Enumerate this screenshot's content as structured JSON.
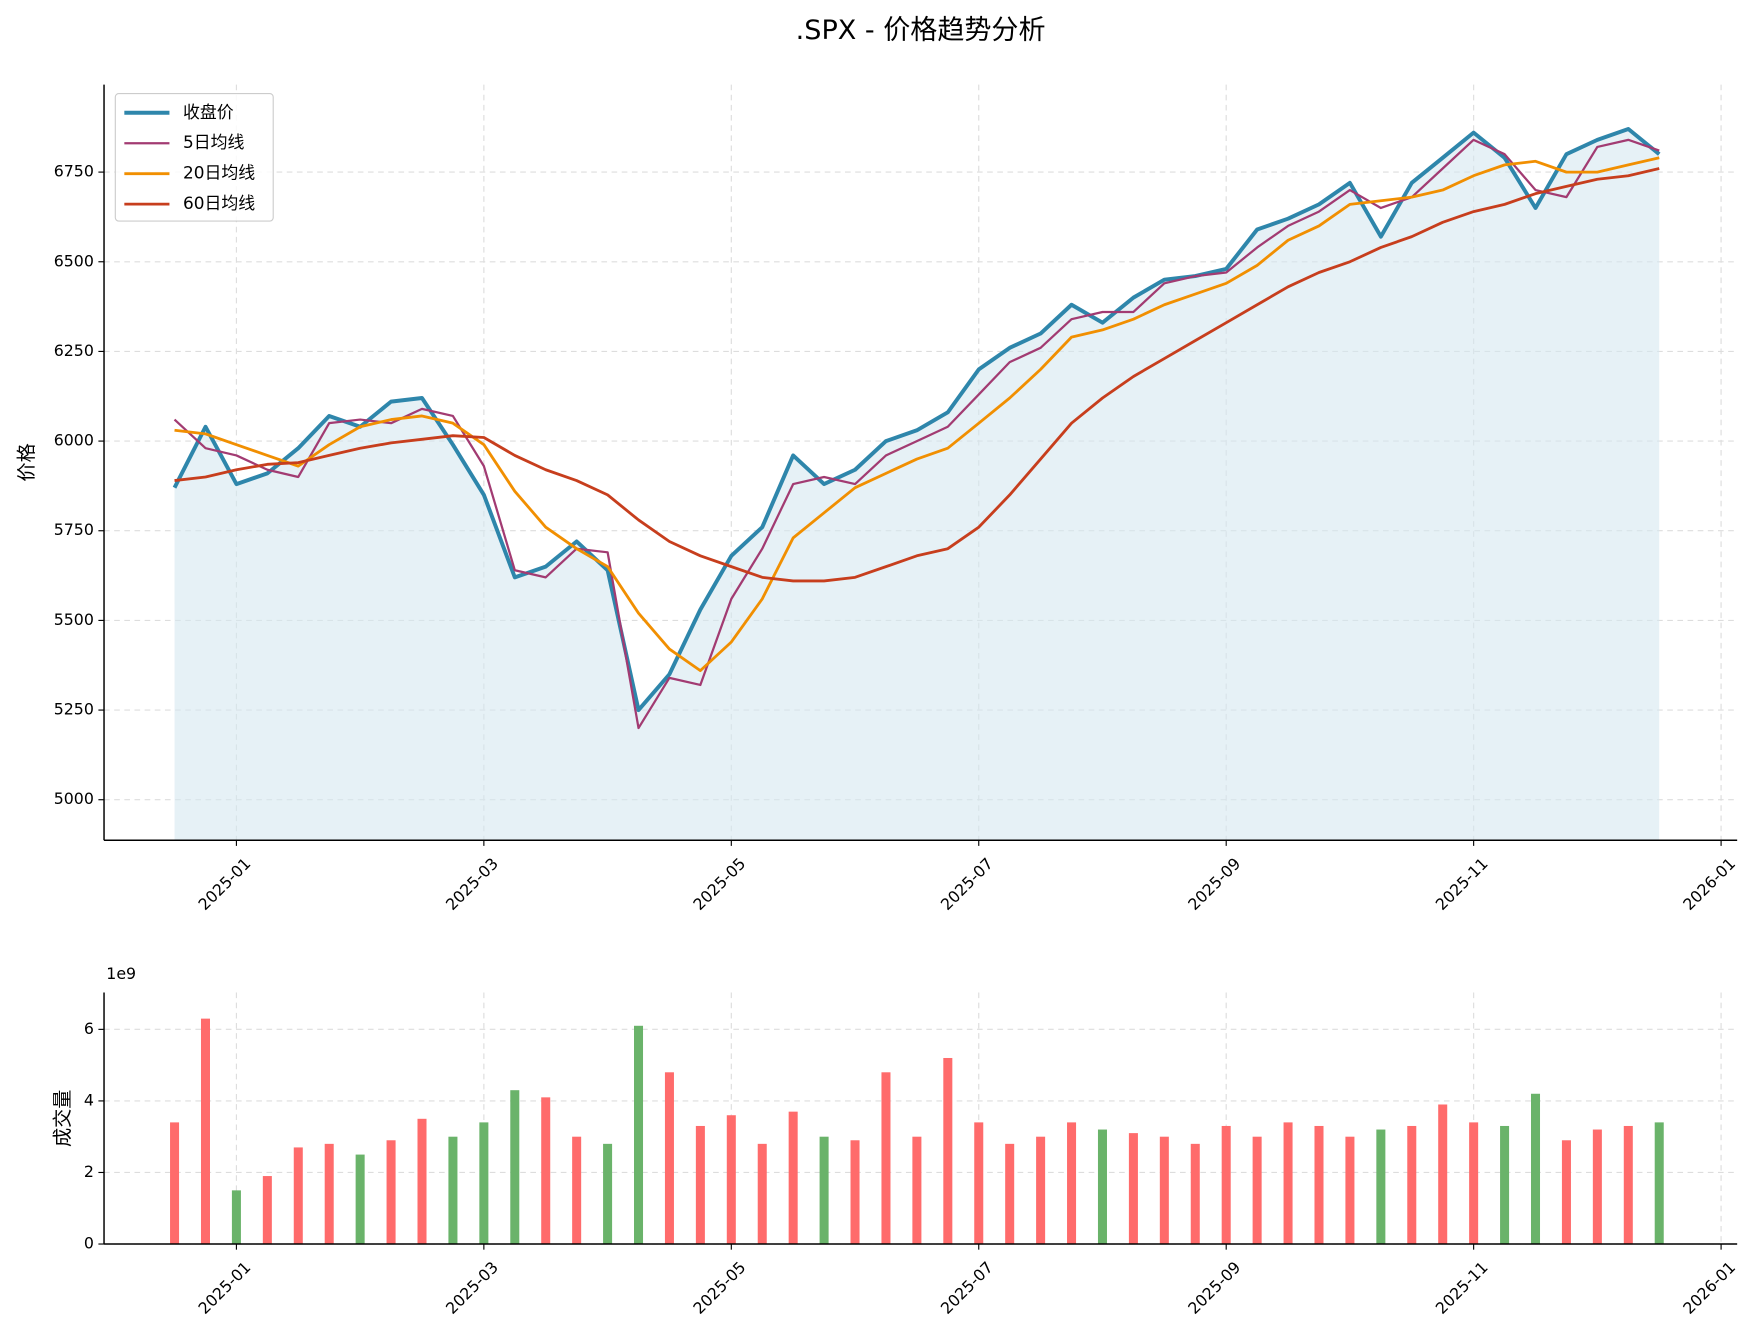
{
  "chart_data": [
    {
      "type": "line",
      "title": ".SPX - 价格趋势分析",
      "ylabel": "价格",
      "x": [
        -0.5,
        -0.25,
        0,
        0.25,
        0.5,
        0.75,
        1,
        1.25,
        1.5,
        1.75,
        2,
        2.25,
        2.5,
        2.75,
        3,
        3.25,
        3.5,
        3.75,
        4,
        4.25,
        4.5,
        4.75,
        5,
        5.25,
        5.5,
        5.75,
        6,
        6.25,
        6.5,
        6.75,
        7,
        7.25,
        7.5,
        7.75,
        8,
        8.25,
        8.5,
        8.75,
        9,
        9.25,
        9.5,
        9.75,
        10,
        10.25,
        10.5,
        10.75,
        11,
        11.25,
        11.5
      ],
      "series": [
        {
          "name": "收盘价",
          "color": "#2e86ab",
          "width": 3.5,
          "fill": "#d6e7f0",
          "values": [
            5870,
            6040,
            5880,
            5910,
            5980,
            6070,
            6040,
            6110,
            6120,
            5990,
            5850,
            5620,
            5650,
            5720,
            5640,
            5250,
            5350,
            5530,
            5680,
            5760,
            5960,
            5880,
            5920,
            6000,
            6030,
            6080,
            6200,
            6260,
            6300,
            6380,
            6330,
            6400,
            6450,
            6460,
            6480,
            6590,
            6620,
            6660,
            6720,
            6570,
            6720,
            6790,
            6860,
            6790,
            6650,
            6800,
            6840,
            6870,
            6800
          ]
        },
        {
          "name": "5日均线",
          "color": "#a23b72",
          "width": 2,
          "values": [
            6060,
            5980,
            5960,
            5920,
            5900,
            6050,
            6060,
            6050,
            6090,
            6070,
            5930,
            5640,
            5620,
            5700,
            5690,
            5200,
            5340,
            5320,
            5560,
            5700,
            5880,
            5900,
            5880,
            5960,
            6000,
            6040,
            6130,
            6220,
            6260,
            6340,
            6360,
            6360,
            6440,
            6460,
            6470,
            6540,
            6600,
            6640,
            6700,
            6650,
            6680,
            6760,
            6840,
            6800,
            6700,
            6680,
            6820,
            6840,
            6810
          ]
        },
        {
          "name": "20日均线",
          "color": "#f18f01",
          "width": 2.5,
          "values": [
            6030,
            6020,
            5990,
            5960,
            5930,
            5990,
            6040,
            6060,
            6070,
            6050,
            5990,
            5860,
            5760,
            5700,
            5650,
            5520,
            5420,
            5360,
            5440,
            5560,
            5730,
            5800,
            5870,
            5910,
            5950,
            5980,
            6050,
            6120,
            6200,
            6290,
            6310,
            6340,
            6380,
            6410,
            6440,
            6490,
            6560,
            6600,
            6660,
            6670,
            6680,
            6700,
            6740,
            6770,
            6780,
            6750,
            6750,
            6770,
            6790
          ]
        },
        {
          "name": "60日均线",
          "color": "#c73e1d",
          "width": 2.5,
          "values": [
            5890,
            5900,
            5920,
            5935,
            5940,
            5960,
            5980,
            5995,
            6005,
            6015,
            6010,
            5960,
            5920,
            5890,
            5850,
            5780,
            5720,
            5680,
            5650,
            5620,
            5610,
            5610,
            5620,
            5650,
            5680,
            5700,
            5760,
            5850,
            5950,
            6050,
            6120,
            6180,
            6230,
            6280,
            6330,
            6380,
            6430,
            6470,
            6500,
            6540,
            6570,
            6610,
            6640,
            6660,
            6690,
            6710,
            6730,
            6740,
            6760
          ]
        }
      ],
      "xlim": [
        -1.07,
        12.13
      ],
      "xticks": [
        {
          "value": 0,
          "label": "2025-01"
        },
        {
          "value": 2,
          "label": "2025-03"
        },
        {
          "value": 4,
          "label": "2025-05"
        },
        {
          "value": 6,
          "label": "2025-07"
        },
        {
          "value": 8,
          "label": "2025-09"
        },
        {
          "value": 10,
          "label": "2025-11"
        },
        {
          "value": 12,
          "label": "2026-01"
        }
      ],
      "ylim": [
        4887,
        6994
      ],
      "yticks": [
        5000,
        5250,
        5500,
        5750,
        6000,
        6250,
        6500,
        6750
      ],
      "grid": true,
      "legend": "upper left"
    },
    {
      "type": "bar",
      "ylabel": "成交量",
      "offset_label": "1e9",
      "up_color": "#ff6b6b",
      "down_color": "#6ab36a",
      "x": [
        -0.5,
        -0.25,
        0,
        0.25,
        0.5,
        0.75,
        1,
        1.25,
        1.5,
        1.75,
        2,
        2.25,
        2.5,
        2.75,
        3,
        3.25,
        3.5,
        3.75,
        4,
        4.25,
        4.5,
        4.75,
        5,
        5.25,
        5.5,
        5.75,
        6,
        6.25,
        6.5,
        6.75,
        7,
        7.25,
        7.5,
        7.75,
        8,
        8.25,
        8.5,
        8.75,
        9,
        9.25,
        9.5,
        9.75,
        10,
        10.25,
        10.5,
        10.75,
        11,
        11.25,
        11.5
      ],
      "values": [
        3.4,
        6.3,
        1.5,
        1.9,
        2.7,
        2.8,
        2.5,
        2.9,
        3.5,
        3.0,
        3.4,
        4.3,
        4.1,
        3.0,
        2.8,
        6.1,
        4.8,
        3.3,
        3.6,
        2.8,
        3.7,
        3.0,
        2.9,
        4.8,
        3.0,
        5.2,
        3.4,
        2.8,
        3.0,
        3.4,
        3.2,
        3.1,
        3.0,
        2.8,
        3.3,
        3.0,
        3.4,
        3.3,
        3.0,
        3.2,
        3.3,
        3.9,
        3.4,
        3.3,
        4.2,
        2.9,
        3.2,
        3.3,
        3.4
      ],
      "xlim": [
        -1.07,
        12.13
      ],
      "xticks": [
        {
          "value": 0,
          "label": "2025-01"
        },
        {
          "value": 2,
          "label": "2025-03"
        },
        {
          "value": 4,
          "label": "2025-05"
        },
        {
          "value": 6,
          "label": "2025-07"
        },
        {
          "value": 8,
          "label": "2025-09"
        },
        {
          "value": 10,
          "label": "2025-11"
        },
        {
          "value": 12,
          "label": "2026-01"
        }
      ],
      "ylim": [
        0,
        7.03
      ],
      "yticks": [
        0,
        2,
        4,
        6
      ],
      "grid": true
    }
  ]
}
